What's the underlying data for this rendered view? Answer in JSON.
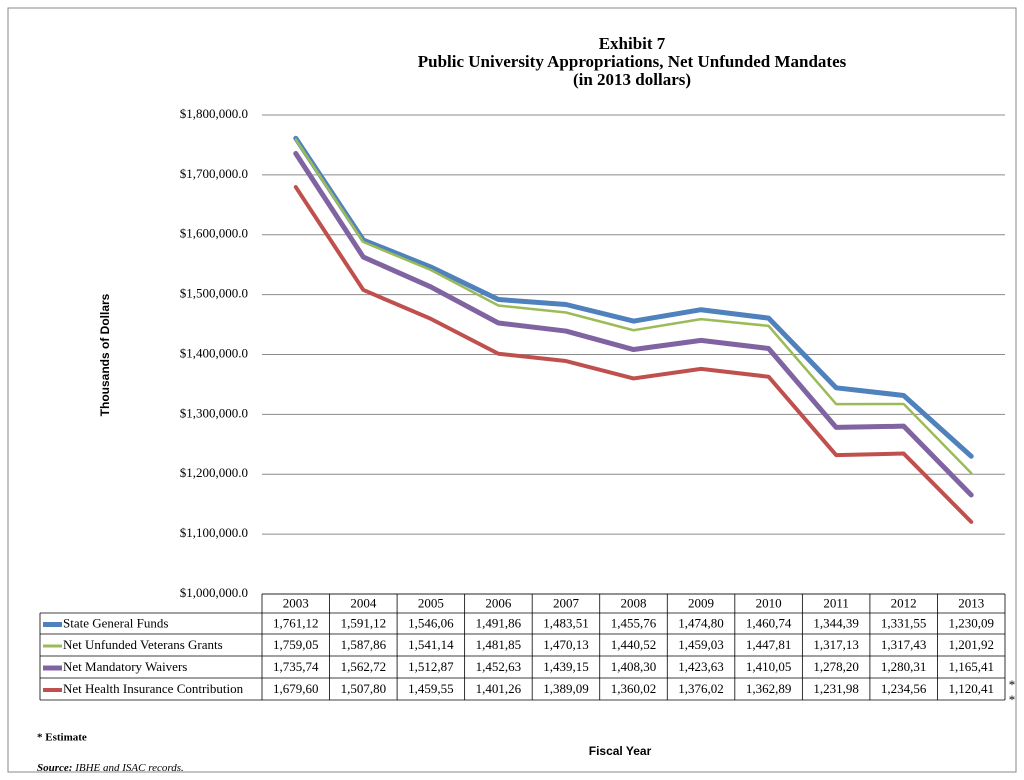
{
  "chart_data": {
    "type": "line",
    "title": [
      "Exhibit 7",
      "Public University Appropriations, Net Unfunded Mandates",
      "(in 2013 dollars)"
    ],
    "y_label": "Thousands of Dollars",
    "x_label": "Fiscal Year",
    "categories": [
      "2003",
      "2004",
      "2005",
      "2006",
      "2007",
      "2008",
      "2009",
      "2010",
      "2011",
      "2012",
      "2013"
    ],
    "series": [
      {
        "name": "State General Funds",
        "color": "#4f81bd",
        "width": 5,
        "values": [
          1761120,
          1591120,
          1546060,
          1491860,
          1483510,
          1455760,
          1474800,
          1460740,
          1344390,
          1331550,
          1230090
        ],
        "value_labels": [
          "1,761,12",
          "1,591,12",
          "1,546,06",
          "1,491,86",
          "1,483,51",
          "1,455,76",
          "1,474,80",
          "1,460,74",
          "1,344,39",
          "1,331,55",
          "1,230,09"
        ]
      },
      {
        "name": "Net Unfunded Veterans Grants",
        "color": "#9bbb59",
        "width": 2.5,
        "values": [
          1759050,
          1587860,
          1541140,
          1481850,
          1470130,
          1440520,
          1459030,
          1447810,
          1317130,
          1317430,
          1201920
        ],
        "value_labels": [
          "1,759,05",
          "1,587,86",
          "1,541,14",
          "1,481,85",
          "1,470,13",
          "1,440,52",
          "1,459,03",
          "1,447,81",
          "1,317,13",
          "1,317,43",
          "1,201,92"
        ]
      },
      {
        "name": "Net Mandatory Waivers",
        "color": "#8064a2",
        "width": 5,
        "values": [
          1735740,
          1562720,
          1512870,
          1452630,
          1439150,
          1408300,
          1423630,
          1410050,
          1278200,
          1280310,
          1165410
        ],
        "value_labels": [
          "1,735,74",
          "1,562,72",
          "1,512,87",
          "1,452,63",
          "1,439,15",
          "1,408,30",
          "1,423,63",
          "1,410,05",
          "1,278,20",
          "1,280,31",
          "1,165,41"
        ]
      },
      {
        "name": "Net Health Insurance Contribution",
        "color": "#c0504d",
        "width": 4,
        "values": [
          1679600,
          1507800,
          1459550,
          1401260,
          1389090,
          1360020,
          1376020,
          1362890,
          1231980,
          1234560,
          1120410
        ],
        "value_labels": [
          "1,679,60",
          "1,507,80",
          "1,459,55",
          "1,401,26",
          "1,389,09",
          "1,360,02",
          "1,376,02",
          "1,362,89",
          "1,231,98",
          "1,234,56",
          "1,120,41"
        ]
      }
    ],
    "ylim": [
      1000000,
      1800000
    ],
    "yticks": [
      {
        "value": 1000000,
        "label": "$1,000,000.0"
      },
      {
        "value": 1100000,
        "label": "$1,100,000.0"
      },
      {
        "value": 1200000,
        "label": "$1,200,000.0"
      },
      {
        "value": 1300000,
        "label": "$1,300,000.0"
      },
      {
        "value": 1400000,
        "label": "$1,400,000.0"
      },
      {
        "value": 1500000,
        "label": "$1,500,000.0"
      },
      {
        "value": 1600000,
        "label": "$1,600,000.0"
      },
      {
        "value": 1700000,
        "label": "$1,700,000.0"
      },
      {
        "value": 1800000,
        "label": "$1,800,000.0"
      }
    ],
    "grid": true,
    "estimate_marks": [
      "*",
      "*"
    ],
    "note": "* Estimate",
    "source_label": "Source:",
    "source_text": "IBHE and ISAC records."
  }
}
